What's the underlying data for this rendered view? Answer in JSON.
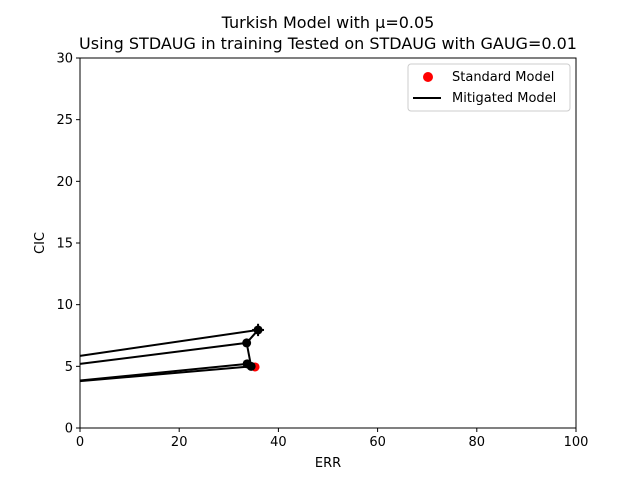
{
  "chart_data": {
    "type": "scatter",
    "title": "Turkish Model with μ=0.05",
    "subtitle": "Using STDAUG in training Tested on STDAUG with GAUG=0.01",
    "xlabel": "ERR",
    "ylabel": "CIC",
    "xlim": [
      0,
      100
    ],
    "ylim": [
      0,
      30
    ],
    "xticks": [
      0,
      20,
      40,
      60,
      80,
      100
    ],
    "yticks": [
      0,
      5,
      10,
      15,
      20,
      25,
      30
    ],
    "grid": false,
    "legend_position": "top-right",
    "legend": [
      {
        "label": "Standard Model",
        "marker": "dot",
        "color": "#ff0000"
      },
      {
        "label": "Mitigated Model",
        "marker": "line",
        "color": "#000000"
      }
    ],
    "series": [
      {
        "name": "Standard Model",
        "kind": "points",
        "color": "#ff0000",
        "points": [
          {
            "x": 35.3,
            "y": 4.95
          }
        ]
      },
      {
        "name": "Mitigated Model",
        "kind": "points",
        "color": "#000000",
        "points": [
          {
            "x": 35.9,
            "y": 7.95,
            "xerr": 1.2,
            "yerr": 0.5
          },
          {
            "x": 33.6,
            "y": 6.9
          },
          {
            "x": 33.7,
            "y": 5.2
          },
          {
            "x": 34.5,
            "y": 5.0
          }
        ]
      }
    ],
    "connector_path": [
      {
        "x": 35.9,
        "y": 7.95
      },
      {
        "x": 33.6,
        "y": 6.9
      },
      {
        "x": 34.5,
        "y": 5.0
      },
      {
        "x": 33.7,
        "y": 5.2
      }
    ],
    "trend_lines": [
      {
        "from": {
          "x": 0,
          "y": 5.85
        },
        "to": {
          "x": 35.9,
          "y": 7.95
        }
      },
      {
        "from": {
          "x": 0,
          "y": 5.2
        },
        "to": {
          "x": 33.6,
          "y": 6.9
        }
      },
      {
        "from": {
          "x": 0,
          "y": 3.85
        },
        "to": {
          "x": 33.7,
          "y": 5.2
        }
      },
      {
        "from": {
          "x": 0,
          "y": 3.8
        },
        "to": {
          "x": 34.5,
          "y": 5.0
        }
      }
    ]
  }
}
